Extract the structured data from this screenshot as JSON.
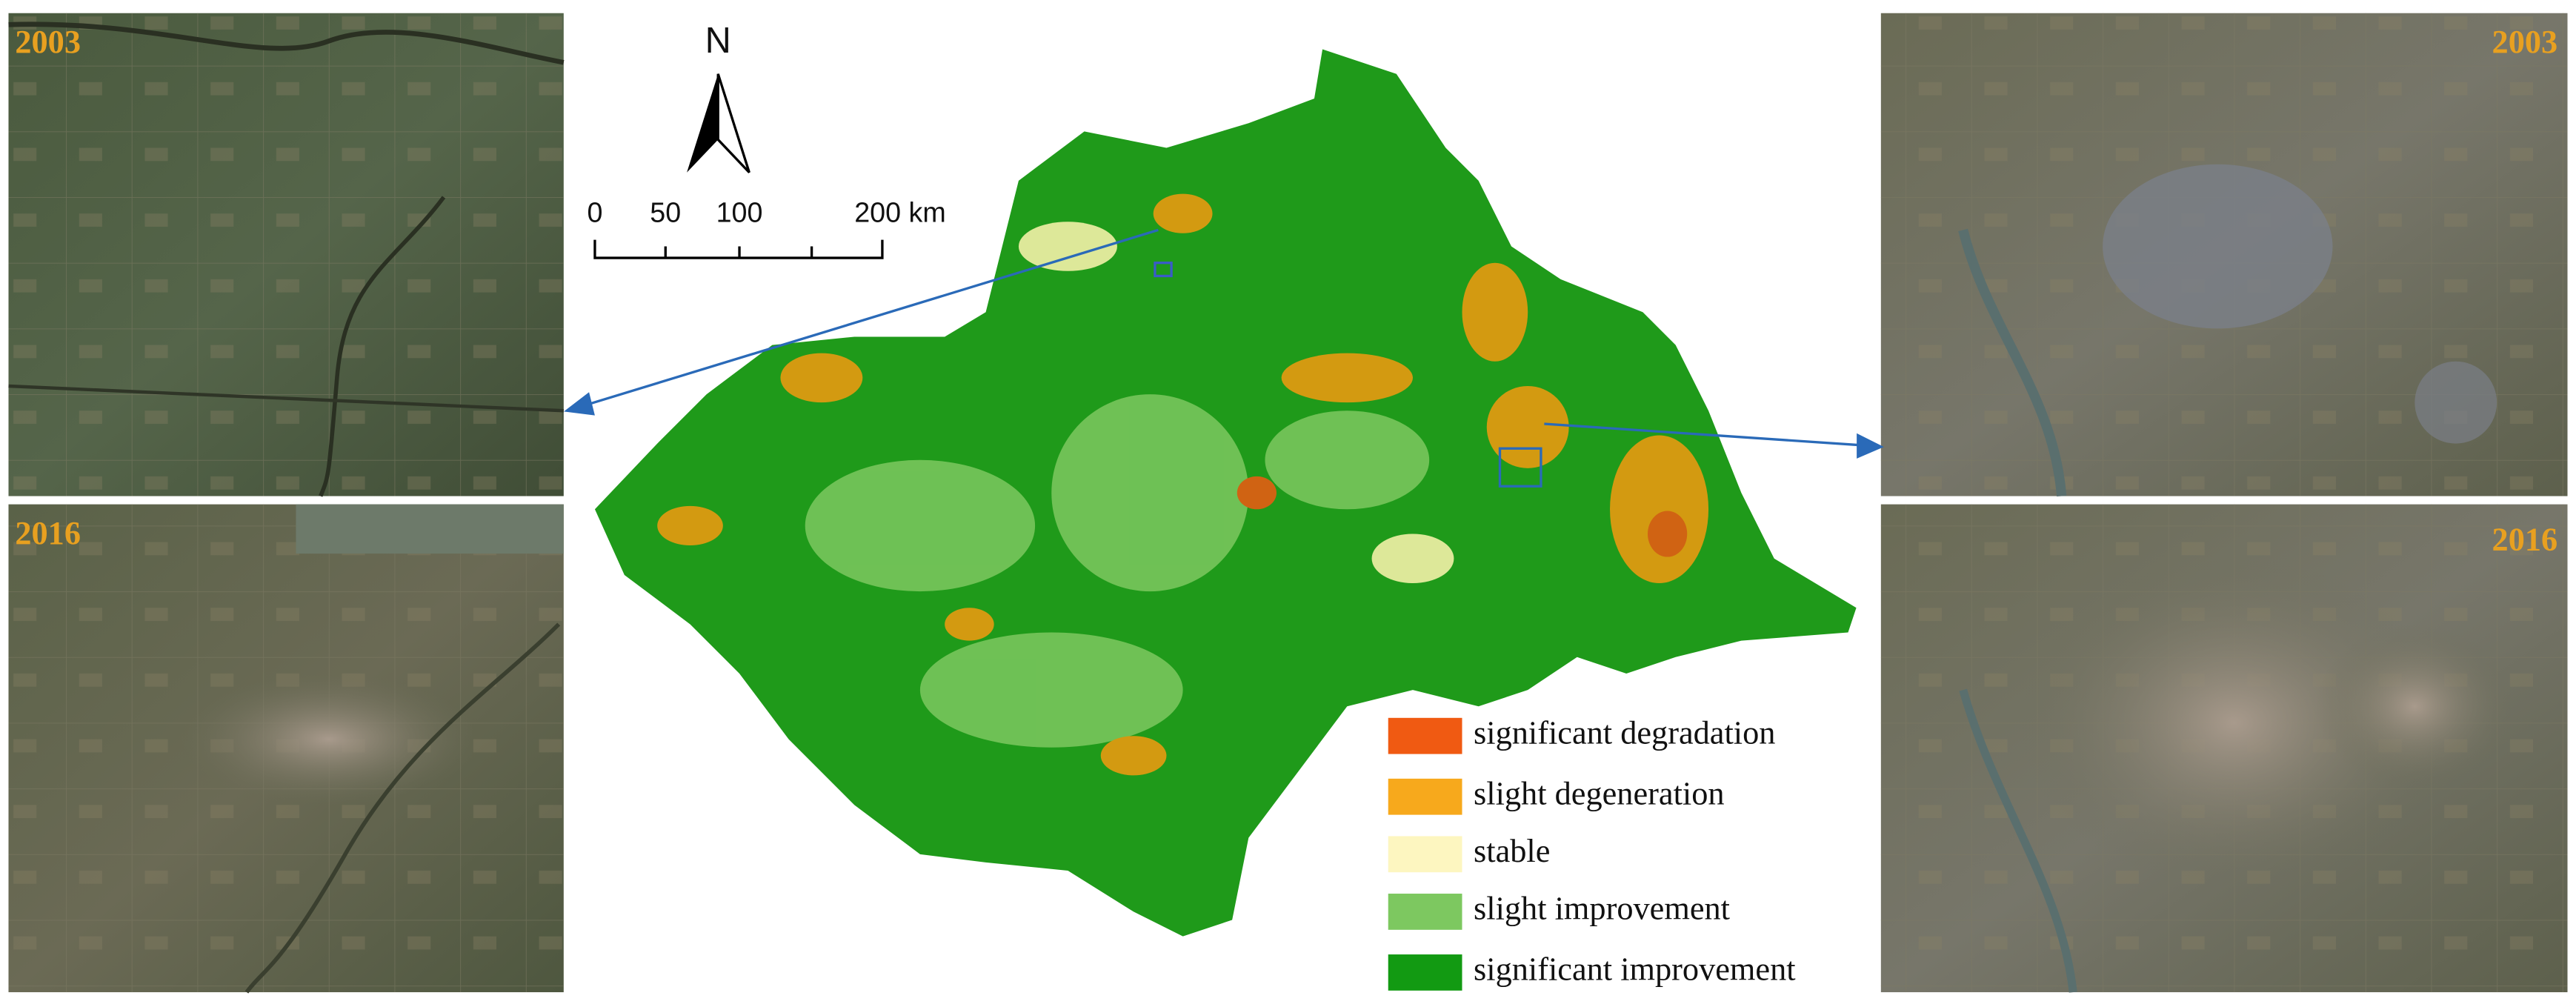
{
  "panels": {
    "left_top": "2003",
    "left_bottom": "2016",
    "right_top": "2003",
    "right_bottom": "2016"
  },
  "north_label": "N",
  "scale_bar": {
    "labels": [
      "0",
      "50",
      "100",
      "200 km"
    ]
  },
  "legend": [
    {
      "label": "significant degradation",
      "color": "#f05a12"
    },
    {
      "label": "slight degeneration",
      "color": "#f7a91c"
    },
    {
      "label": "stable",
      "color": "#fdf6c0"
    },
    {
      "label": "slight improvement",
      "color": "#7dc860"
    },
    {
      "label": "significant improvement",
      "color": "#129a12"
    }
  ]
}
